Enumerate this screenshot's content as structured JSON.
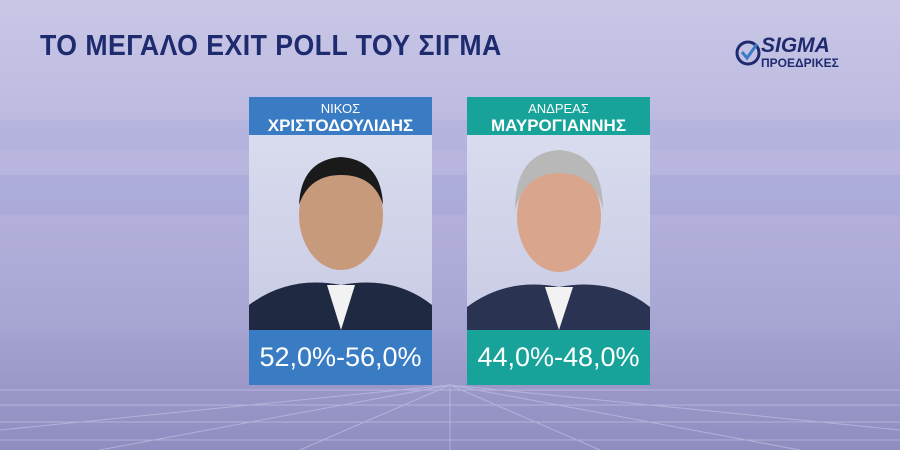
{
  "header": {
    "title": "ΤΟ ΜΕΓΑΛΟ EXIT POLL ΤΟΥ ΣΙΓΜΑ"
  },
  "logo": {
    "brand": "SIGMA",
    "subtitle": "ΠΡΟΕΔΡΙΚΕΣ"
  },
  "candidates": [
    {
      "first_name": "ΝΙΚΟΣ",
      "last_name": "ΧΡΙΣΤΟΔΟΥΛΙΔΗΣ",
      "result": "52,0%-56,0%"
    },
    {
      "first_name": "ΑΝΔΡΕΑΣ",
      "last_name": "ΜΑΥΡΟΓΙΑΝΝΗΣ",
      "result": "44,0%-48,0%"
    }
  ]
}
